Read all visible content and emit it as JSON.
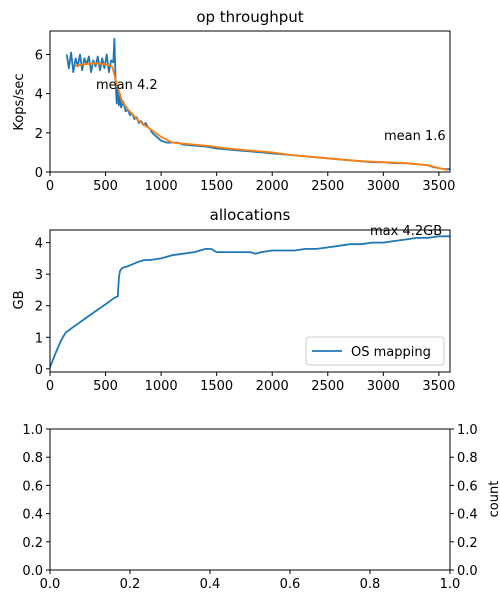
{
  "colors": {
    "series_blue": "#1f77b4",
    "series_orange": "#ff7f0e",
    "axes": "#000000",
    "background": "#ffffff",
    "legend_border": "#cccccc"
  },
  "chart_data": [
    {
      "type": "line",
      "title": "op throughput",
      "xlabel": "",
      "ylabel": "Kops/sec",
      "xlim": [
        0,
        3600
      ],
      "ylim": [
        0,
        7.2
      ],
      "xticks": [
        0,
        500,
        1000,
        1500,
        2000,
        2500,
        3000,
        3500
      ],
      "yticks": [
        0,
        2,
        4,
        6
      ],
      "grid": false,
      "legend": null,
      "annotations": [
        {
          "text": "mean 4.2",
          "x": 400,
          "y": 4.2
        },
        {
          "text": "mean 1.6",
          "x": 2990,
          "y": 1.75
        }
      ],
      "series": [
        {
          "color": "#1f77b4",
          "x": [
            150,
            170,
            190,
            210,
            230,
            250,
            270,
            290,
            310,
            330,
            350,
            370,
            390,
            410,
            430,
            450,
            470,
            490,
            510,
            530,
            550,
            570,
            580,
            590,
            600,
            610,
            620,
            630,
            640,
            660,
            680,
            700,
            720,
            740,
            760,
            780,
            800,
            820,
            840,
            860,
            880,
            900,
            920,
            940,
            960,
            980,
            1000,
            1050,
            1100,
            1150,
            1200,
            1300,
            1400,
            1500,
            1600,
            1700,
            1800,
            1900,
            2000,
            2100,
            2200,
            2300,
            2400,
            2500,
            2600,
            2700,
            2800,
            2900,
            3000,
            3100,
            3200,
            3300,
            3400,
            3450,
            3500,
            3550,
            3600
          ],
          "y": [
            6.0,
            5.3,
            6.1,
            5.1,
            5.8,
            5.4,
            6.0,
            5.2,
            5.8,
            5.5,
            5.9,
            5.1,
            5.7,
            5.4,
            5.9,
            5.2,
            5.8,
            5.3,
            6.0,
            5.1,
            5.7,
            5.6,
            6.8,
            4.6,
            3.5,
            4.3,
            3.4,
            3.9,
            3.3,
            3.6,
            3.1,
            3.2,
            2.9,
            3.0,
            2.7,
            2.8,
            2.5,
            2.6,
            2.4,
            2.5,
            2.3,
            2.2,
            2.0,
            1.9,
            1.8,
            1.7,
            1.6,
            1.5,
            1.5,
            1.5,
            1.4,
            1.35,
            1.3,
            1.2,
            1.15,
            1.1,
            1.05,
            1.0,
            0.95,
            0.9,
            0.85,
            0.8,
            0.75,
            0.7,
            0.65,
            0.6,
            0.55,
            0.5,
            0.5,
            0.45,
            0.45,
            0.4,
            0.35,
            0.25,
            0.2,
            0.15,
            0.15
          ]
        },
        {
          "color": "#ff7f0e",
          "x": [
            220,
            300,
            400,
            500,
            560,
            600,
            650,
            700,
            800,
            900,
            1000,
            1100,
            1200,
            1400,
            1600,
            1800,
            2000,
            2200,
            2400,
            2600,
            2800,
            3000,
            3200,
            3400,
            3500,
            3580
          ],
          "y": [
            5.4,
            5.5,
            5.55,
            5.5,
            5.4,
            4.5,
            3.6,
            3.2,
            2.6,
            2.2,
            1.8,
            1.5,
            1.45,
            1.35,
            1.2,
            1.1,
            1.0,
            0.85,
            0.75,
            0.65,
            0.55,
            0.5,
            0.45,
            0.35,
            0.2,
            0.1
          ]
        }
      ]
    },
    {
      "type": "line",
      "title": "allocations",
      "xlabel": "",
      "ylabel": "GB",
      "xlim": [
        0,
        3600
      ],
      "ylim": [
        -0.1,
        4.4
      ],
      "xticks": [
        0,
        500,
        1000,
        1500,
        2000,
        2500,
        3000,
        3500
      ],
      "yticks": [
        0,
        1,
        2,
        3,
        4
      ],
      "grid": false,
      "legend": "lower-right",
      "annotations": [
        {
          "text": "max 4.2GB",
          "x": 2880,
          "y": 4.2
        }
      ],
      "series": [
        {
          "name": "OS mapping",
          "color": "#1f77b4",
          "x": [
            0,
            50,
            100,
            140,
            200,
            300,
            400,
            500,
            580,
            610,
            620,
            630,
            650,
            700,
            800,
            850,
            900,
            1000,
            1100,
            1200,
            1300,
            1400,
            1450,
            1500,
            1700,
            1800,
            1850,
            1900,
            2000,
            2100,
            2200,
            2300,
            2400,
            2500,
            2600,
            2700,
            2800,
            2900,
            3000,
            3100,
            3200,
            3300,
            3400,
            3500,
            3600
          ],
          "y": [
            0.05,
            0.5,
            0.9,
            1.15,
            1.3,
            1.55,
            1.8,
            2.05,
            2.25,
            2.3,
            2.9,
            3.1,
            3.2,
            3.25,
            3.4,
            3.45,
            3.45,
            3.5,
            3.6,
            3.65,
            3.7,
            3.8,
            3.8,
            3.7,
            3.7,
            3.7,
            3.65,
            3.7,
            3.75,
            3.75,
            3.75,
            3.8,
            3.8,
            3.85,
            3.9,
            3.95,
            3.95,
            4.0,
            4.0,
            4.05,
            4.1,
            4.15,
            4.15,
            4.2,
            4.2
          ]
        }
      ]
    },
    {
      "type": "line",
      "title": "",
      "xlabel": "",
      "ylabel": "count",
      "ylabel_side": "right",
      "xlim": [
        0,
        1
      ],
      "ylim": [
        0,
        1
      ],
      "xticks": [
        0.0,
        0.2,
        0.4,
        0.6,
        0.8,
        1.0
      ],
      "yticks": [
        0.0,
        0.2,
        0.4,
        0.6,
        0.8,
        1.0
      ],
      "tick_labels": [
        "0.0",
        "0.2",
        "0.4",
        "0.6",
        "0.8",
        "1.0"
      ],
      "grid": false,
      "legend": null,
      "series": []
    }
  ]
}
